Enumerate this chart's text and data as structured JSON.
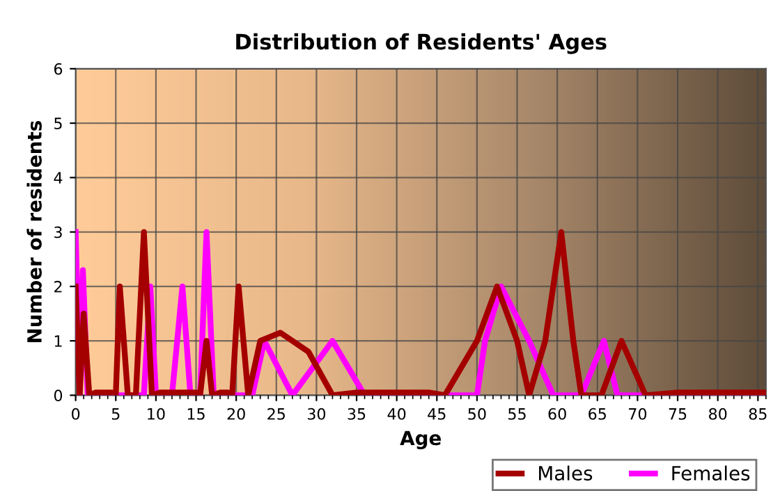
{
  "chart_data": {
    "type": "line",
    "title": "Distribution of Residents' Ages",
    "xlabel": "Age",
    "ylabel": "Number of residents",
    "xlim": [
      0,
      86
    ],
    "xticks": [
      0,
      5,
      10,
      15,
      20,
      25,
      30,
      35,
      40,
      45,
      50,
      55,
      60,
      65,
      70,
      75,
      80,
      85
    ],
    "ylim": [
      0,
      6
    ],
    "yticks": [
      0,
      1,
      2,
      3,
      4,
      5,
      6
    ],
    "grid": true,
    "legend": "bottom right",
    "marker": "none",
    "line_style": "solid",
    "series": [
      {
        "name": "Males",
        "color": "#a50000",
        "x": [
          0,
          0.5,
          1,
          1.7,
          2.5,
          4.5,
          5,
          5.5,
          6.5,
          7.5,
          8.5,
          9.5,
          10.5,
          15,
          15.5,
          16.3,
          17,
          18,
          19,
          19.5,
          20.3,
          21.5,
          23,
          25.5,
          29,
          32,
          35,
          44,
          46,
          50,
          52.5,
          55,
          56.5,
          58.5,
          60.5,
          62,
          63,
          65.5,
          68,
          71,
          75,
          86
        ],
        "values": [
          2,
          0,
          1.5,
          0,
          0.05,
          0.05,
          0,
          2,
          0,
          0,
          3,
          0,
          0.05,
          0.05,
          0,
          1,
          0,
          0.05,
          0.05,
          0,
          2,
          0,
          1,
          1.15,
          0.8,
          0,
          0.05,
          0.05,
          0,
          1,
          2,
          1,
          0,
          1,
          3,
          1,
          0,
          0,
          1,
          0,
          0.05,
          0.05
        ]
      },
      {
        "name": "Females",
        "color": "#ff00ff",
        "x": [
          0,
          0.5,
          0.9,
          1.5,
          8.5,
          9.3,
          10,
          11,
          12,
          13.3,
          14.3,
          15.5,
          16.3,
          17.2,
          22,
          23.5,
          27,
          32,
          36,
          50,
          51,
          53,
          56.5,
          59.5,
          63,
          65.8,
          67.5,
          74,
          86
        ],
        "values": [
          3,
          0,
          2.3,
          0,
          0,
          2,
          0,
          0.05,
          0,
          2,
          0,
          0,
          3,
          0,
          0,
          1,
          0,
          1,
          0,
          0,
          1,
          2,
          1,
          0,
          0,
          1,
          0,
          0,
          0
        ]
      }
    ]
  }
}
